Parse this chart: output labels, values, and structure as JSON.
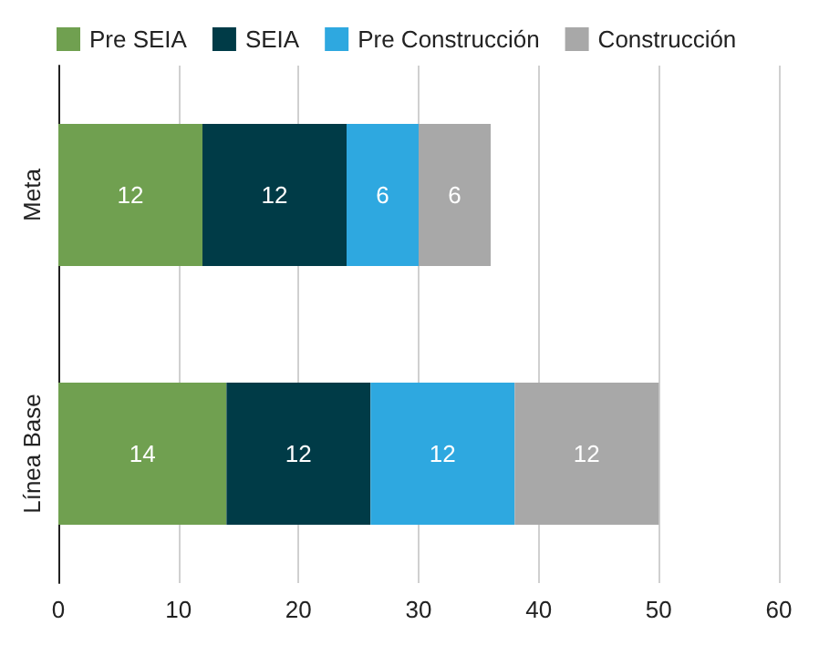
{
  "chart_data": {
    "type": "bar",
    "orientation": "horizontal",
    "stacked": true,
    "categories": [
      "Meta",
      "Línea Base"
    ],
    "series": [
      {
        "name": "Pre SEIA",
        "color": "#70a050",
        "values": [
          12,
          14
        ]
      },
      {
        "name": "SEIA",
        "color": "#003b47",
        "values": [
          12,
          12
        ]
      },
      {
        "name": "Pre Construcción",
        "color": "#2ea8e0",
        "values": [
          6,
          12
        ]
      },
      {
        "name": "Construcción",
        "color": "#a8a8a8",
        "values": [
          6,
          12
        ]
      }
    ],
    "xlim": [
      0,
      60
    ],
    "xticks": [
      0,
      10,
      20,
      30,
      40,
      50,
      60
    ],
    "grid": "x",
    "legend": "top left",
    "data_labels": true
  }
}
